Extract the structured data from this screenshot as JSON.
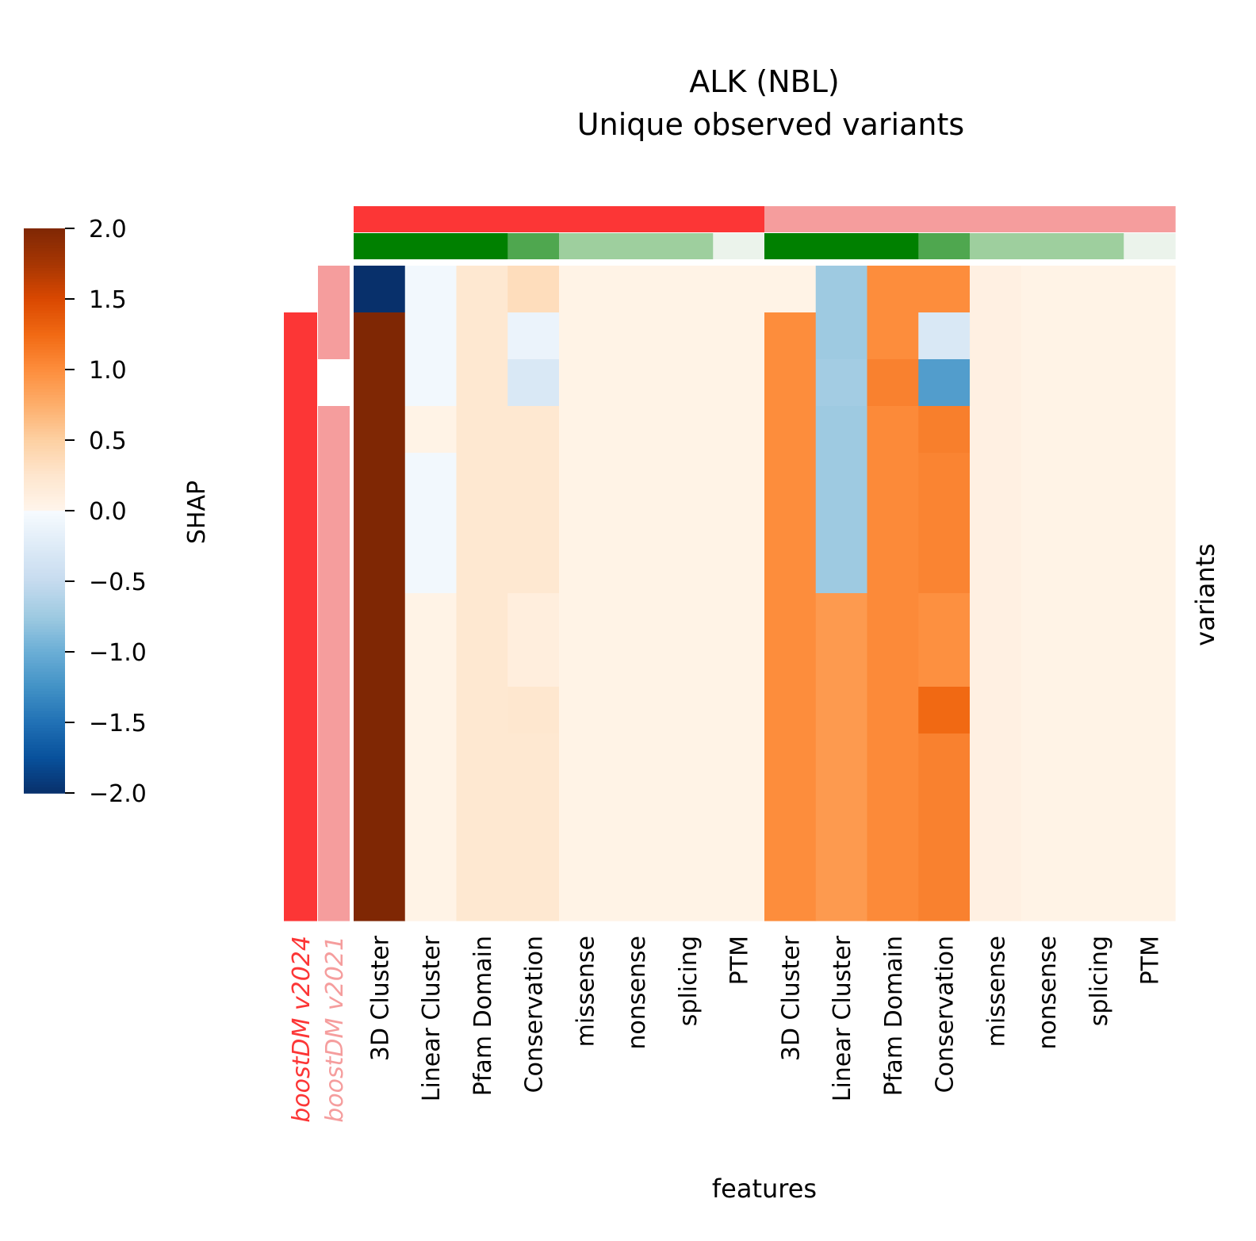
{
  "chart_data": {
    "type": "heatmap",
    "title": "ALK (NBL)",
    "subtitle": "Unique observed variants",
    "xlabel": "features",
    "ylabel": "variants",
    "colorbar": {
      "label": "SHAP",
      "range": [
        -2.0,
        2.0
      ],
      "ticks": [
        "2.0",
        "1.5",
        "1.0",
        "0.5",
        "0.0",
        "−0.5",
        "−1.0",
        "−1.5",
        "−2.0"
      ],
      "positive_colormap": "Oranges",
      "negative_colormap": "Blues"
    },
    "row_annotations": {
      "labels": [
        "boostDM v2024",
        "boostDM v2021"
      ],
      "label_colors": [
        "#fc3636",
        "#f59d9d"
      ],
      "colors": [
        "#fc3636",
        "#f59d9d"
      ],
      "present": [
        [
          0,
          1
        ],
        [
          1,
          1
        ],
        [
          1,
          0
        ],
        [
          1,
          1
        ],
        [
          1,
          1
        ],
        [
          1,
          1
        ],
        [
          1,
          1
        ],
        [
          1,
          1
        ],
        [
          1,
          1
        ],
        [
          1,
          1
        ],
        [
          1,
          1
        ],
        [
          1,
          1
        ],
        [
          1,
          1
        ],
        [
          1,
          1
        ]
      ]
    },
    "column_annotations": {
      "model": {
        "labels": [
          "boostDM v2024",
          "boostDM v2021"
        ],
        "colors": [
          "#fc3636",
          "#f59d9d"
        ],
        "per_column": [
          0,
          0,
          0,
          0,
          0,
          0,
          0,
          0,
          1,
          1,
          1,
          1,
          1,
          1,
          1,
          1
        ]
      },
      "feature_group": {
        "colors": [
          "#008000",
          "#4fa74f",
          "#9ecf9e",
          "#ebf3eb"
        ],
        "per_column": [
          0,
          0,
          0,
          1,
          2,
          2,
          2,
          3,
          0,
          0,
          0,
          1,
          2,
          2,
          2,
          3
        ]
      }
    },
    "columns": [
      "3D Cluster",
      "Linear Cluster",
      "Pfam Domain",
      "Conservation",
      "missense",
      "nonsense",
      "splicing",
      "PTM",
      "3D Cluster",
      "Linear Cluster",
      "Pfam Domain",
      "Conservation",
      "missense",
      "nonsense",
      "splicing",
      "PTM"
    ],
    "rows": 14,
    "values": [
      [
        -2.0,
        -0.05,
        0.22,
        0.35,
        0.04,
        0.04,
        0.04,
        0.04,
        0.04,
        -0.75,
        1.0,
        1.0,
        0.08,
        0.04,
        0.04,
        0.04
      ],
      [
        2.0,
        -0.05,
        0.22,
        -0.12,
        0.04,
        0.04,
        0.04,
        0.04,
        1.0,
        -0.75,
        1.0,
        -0.3,
        0.08,
        0.04,
        0.04,
        0.04
      ],
      [
        2.0,
        -0.05,
        0.22,
        -0.3,
        0.04,
        0.04,
        0.04,
        0.04,
        1.0,
        -0.72,
        1.08,
        -1.15,
        0.08,
        0.04,
        0.04,
        0.04
      ],
      [
        2.0,
        0.04,
        0.22,
        0.22,
        0.04,
        0.04,
        0.04,
        0.04,
        1.0,
        -0.75,
        1.02,
        1.1,
        0.08,
        0.04,
        0.04,
        0.04
      ],
      [
        2.0,
        -0.05,
        0.22,
        0.22,
        0.04,
        0.04,
        0.04,
        0.04,
        1.0,
        -0.75,
        1.02,
        1.06,
        0.08,
        0.04,
        0.04,
        0.04
      ],
      [
        2.0,
        -0.05,
        0.22,
        0.22,
        0.04,
        0.04,
        0.04,
        0.04,
        1.0,
        -0.75,
        1.02,
        1.06,
        0.08,
        0.04,
        0.04,
        0.04
      ],
      [
        2.0,
        -0.05,
        0.22,
        0.22,
        0.04,
        0.04,
        0.04,
        0.04,
        1.0,
        -0.75,
        1.02,
        1.06,
        0.08,
        0.04,
        0.04,
        0.04
      ],
      [
        2.0,
        0.04,
        0.22,
        0.12,
        0.04,
        0.04,
        0.04,
        0.04,
        1.0,
        0.9,
        1.02,
        0.98,
        0.08,
        0.04,
        0.04,
        0.04
      ],
      [
        2.0,
        0.04,
        0.22,
        0.12,
        0.04,
        0.04,
        0.04,
        0.04,
        1.0,
        0.9,
        1.02,
        0.98,
        0.08,
        0.04,
        0.04,
        0.04
      ],
      [
        2.0,
        0.04,
        0.22,
        0.24,
        0.04,
        0.04,
        0.04,
        0.04,
        1.0,
        0.9,
        1.02,
        1.25,
        0.08,
        0.04,
        0.04,
        0.04
      ],
      [
        2.0,
        0.04,
        0.22,
        0.22,
        0.04,
        0.04,
        0.04,
        0.04,
        1.0,
        0.9,
        1.02,
        1.08,
        0.08,
        0.04,
        0.04,
        0.04
      ],
      [
        2.0,
        0.04,
        0.22,
        0.22,
        0.04,
        0.04,
        0.04,
        0.04,
        1.0,
        0.9,
        1.02,
        1.08,
        0.08,
        0.04,
        0.04,
        0.04
      ],
      [
        2.0,
        0.04,
        0.22,
        0.22,
        0.04,
        0.04,
        0.04,
        0.04,
        1.0,
        0.9,
        1.02,
        1.08,
        0.08,
        0.04,
        0.04,
        0.04
      ],
      [
        2.0,
        0.04,
        0.22,
        0.22,
        0.04,
        0.04,
        0.04,
        0.04,
        1.0,
        0.9,
        1.02,
        1.08,
        0.08,
        0.04,
        0.04,
        0.04
      ]
    ]
  }
}
